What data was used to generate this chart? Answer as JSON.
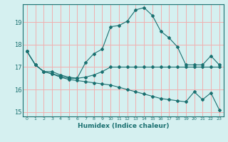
{
  "title": "",
  "xlabel": "Humidex (Indice chaleur)",
  "ylabel": "",
  "background_color": "#d5f0f0",
  "grid_color": "#f0b0b0",
  "line_color": "#1a7070",
  "xlim": [
    -0.5,
    23.5
  ],
  "ylim": [
    14.8,
    19.8
  ],
  "yticks": [
    15,
    16,
    17,
    18,
    19
  ],
  "xticks": [
    0,
    1,
    2,
    3,
    4,
    5,
    6,
    7,
    8,
    9,
    10,
    11,
    12,
    13,
    14,
    15,
    16,
    17,
    18,
    19,
    20,
    21,
    22,
    23
  ],
  "line1_x": [
    0,
    1,
    2,
    3,
    4,
    5,
    6,
    7,
    8,
    9,
    10,
    11,
    12,
    13,
    14,
    15,
    16,
    17,
    18,
    19,
    20,
    21,
    22,
    23
  ],
  "line1_y": [
    17.7,
    17.1,
    16.8,
    16.8,
    16.65,
    16.55,
    16.5,
    17.2,
    17.6,
    17.8,
    18.8,
    18.85,
    19.05,
    19.55,
    19.65,
    19.3,
    18.6,
    18.3,
    17.9,
    17.1,
    17.1,
    17.1,
    17.5,
    17.1
  ],
  "line2_x": [
    0,
    1,
    2,
    3,
    4,
    5,
    6,
    7,
    8,
    9,
    10,
    11,
    12,
    13,
    14,
    15,
    16,
    17,
    18,
    19,
    20,
    21,
    22,
    23
  ],
  "line2_y": [
    17.7,
    17.1,
    16.8,
    16.7,
    16.6,
    16.5,
    16.5,
    16.55,
    16.65,
    16.8,
    17.0,
    17.0,
    17.0,
    17.0,
    17.0,
    17.0,
    17.0,
    17.0,
    17.0,
    17.0,
    17.0,
    17.0,
    17.0,
    17.0
  ],
  "line3_x": [
    0,
    1,
    2,
    3,
    4,
    5,
    6,
    7,
    8,
    9,
    10,
    11,
    12,
    13,
    14,
    15,
    16,
    17,
    18,
    19,
    20,
    21,
    22,
    23
  ],
  "line3_y": [
    17.7,
    17.1,
    16.8,
    16.7,
    16.55,
    16.45,
    16.4,
    16.35,
    16.3,
    16.25,
    16.2,
    16.1,
    16.0,
    15.9,
    15.8,
    15.7,
    15.6,
    15.55,
    15.5,
    15.45,
    15.9,
    15.55,
    15.85,
    15.1
  ]
}
